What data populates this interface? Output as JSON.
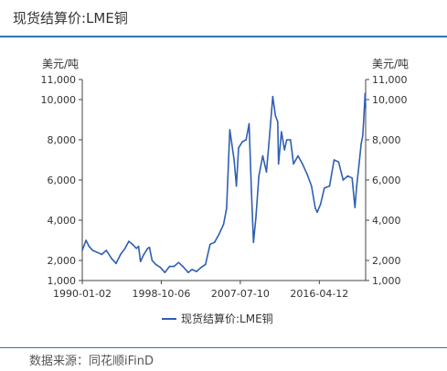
{
  "header": {
    "title": "现货结算价:LME铜"
  },
  "footer": {
    "source": "数据来源：同花顺iFinD"
  },
  "colors": {
    "accent": "#2e75b6",
    "series": "#2f5fb3"
  },
  "chart_data": {
    "type": "line",
    "title": "现货结算价:LME铜",
    "left_axis_unit": "美元/吨",
    "right_axis_unit": "美元/吨",
    "ylim": [
      1000,
      11000
    ],
    "yticks": [
      1000,
      2000,
      4000,
      6000,
      8000,
      10000,
      11000
    ],
    "ytick_labels": [
      "1,000",
      "2,000",
      "4,000",
      "6,000",
      "8,000",
      "10,000",
      "11,000"
    ],
    "xlim": [
      "1990-01-02",
      "2021-05-31"
    ],
    "xticks": [
      "1990-01-02",
      "1998-10-06",
      "2007-07-10",
      "2016-04-12"
    ],
    "legend_position": "bottom-center",
    "grid": false,
    "series": [
      {
        "name": "现货结算价:LME铜",
        "x": [
          "1990-01-02",
          "1990-06-01",
          "1990-10-01",
          "1991-03-01",
          "1991-09-01",
          "1992-03-01",
          "1992-09-01",
          "1993-04-01",
          "1993-10-01",
          "1994-04-01",
          "1994-10-01",
          "1995-03-01",
          "1995-08-01",
          "1996-01-01",
          "1996-04-01",
          "1996-06-15",
          "1996-11-01",
          "1997-04-01",
          "1997-06-15",
          "1997-10-01",
          "1998-03-01",
          "1998-09-01",
          "1999-03-01",
          "1999-09-01",
          "2000-03-01",
          "2000-09-01",
          "2001-03-01",
          "2001-10-01",
          "2002-03-01",
          "2002-09-01",
          "2003-03-01",
          "2003-09-01",
          "2004-03-01",
          "2004-09-01",
          "2005-03-01",
          "2005-09-01",
          "2006-01-01",
          "2006-05-12",
          "2006-08-01",
          "2006-11-01",
          "2007-02-01",
          "2007-05-01",
          "2007-10-01",
          "2008-03-01",
          "2008-07-01",
          "2008-10-01",
          "2008-12-24",
          "2009-04-01",
          "2009-08-01",
          "2010-01-01",
          "2010-06-01",
          "2010-10-01",
          "2011-02-14",
          "2011-06-01",
          "2011-09-01",
          "2011-10-04",
          "2012-02-01",
          "2012-06-01",
          "2012-09-01",
          "2013-02-01",
          "2013-06-01",
          "2013-12-01",
          "2014-06-01",
          "2014-12-01",
          "2015-06-01",
          "2015-11-01",
          "2016-01-15",
          "2016-06-01",
          "2016-11-01",
          "2017-06-01",
          "2017-12-01",
          "2018-06-01",
          "2018-12-01",
          "2019-06-01",
          "2019-12-01",
          "2020-03-23",
          "2020-06-01",
          "2020-09-01",
          "2020-12-01",
          "2021-02-01",
          "2021-03-15",
          "2021-05-10",
          "2021-05-31"
        ],
        "values": [
          2500,
          3000,
          2700,
          2500,
          2400,
          2300,
          2500,
          2100,
          1850,
          2300,
          2600,
          2950,
          2800,
          2600,
          2700,
          1950,
          2300,
          2600,
          2650,
          2000,
          1800,
          1650,
          1400,
          1700,
          1700,
          1900,
          1700,
          1400,
          1550,
          1450,
          1650,
          1800,
          2800,
          2900,
          3300,
          3800,
          4600,
          8500,
          7800,
          7000,
          5700,
          7600,
          7900,
          8000,
          8800,
          5500,
          2900,
          4100,
          6200,
          7200,
          6400,
          8100,
          10150,
          9200,
          8900,
          6800,
          8400,
          7500,
          8000,
          8000,
          6800,
          7200,
          6800,
          6300,
          5700,
          4600,
          4400,
          4800,
          5600,
          5700,
          7000,
          6900,
          6000,
          6200,
          6100,
          4630,
          5700,
          6700,
          7800,
          8200,
          9000,
          10300,
          9600
        ]
      }
    ]
  }
}
